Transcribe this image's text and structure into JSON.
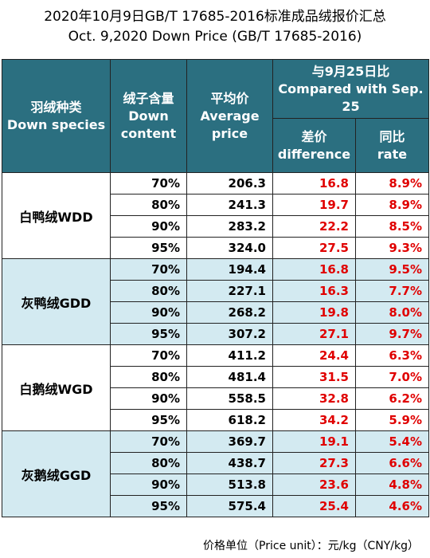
{
  "title_cn": "2020年10月9日GB/T 17685-2016标准成品绒报价汇总",
  "title_en": "Oct. 9,2020 Down Price (GB/T 17685-2016)",
  "headers": {
    "species": [
      "羽绒种类",
      "Down species"
    ],
    "content": [
      "绒子含量",
      "Down",
      "content"
    ],
    "avg": [
      "平均价",
      "Average",
      "price"
    ],
    "compare": [
      "与9月25日比",
      "Compared with Sep.",
      "25"
    ],
    "diff": [
      "差价",
      "difference"
    ],
    "rate": [
      "同比",
      "rate"
    ]
  },
  "colors": {
    "header_bg": "#2b6f80",
    "shade_bg": "#d3eaf1",
    "change": "#e00000"
  },
  "groups": [
    {
      "species": "白鸭绒WDD",
      "shaded": false,
      "rows": [
        {
          "content": "70%",
          "avg": "206.3",
          "diff": "16.8",
          "rate": "8.9%"
        },
        {
          "content": "80%",
          "avg": "241.3",
          "diff": "19.7",
          "rate": "8.9%"
        },
        {
          "content": "90%",
          "avg": "283.2",
          "diff": "22.2",
          "rate": "8.5%"
        },
        {
          "content": "95%",
          "avg": "324.0",
          "diff": "27.5",
          "rate": "9.3%"
        }
      ]
    },
    {
      "species": "灰鸭绒GDD",
      "shaded": true,
      "rows": [
        {
          "content": "70%",
          "avg": "194.4",
          "diff": "16.8",
          "rate": "9.5%"
        },
        {
          "content": "80%",
          "avg": "227.1",
          "diff": "16.3",
          "rate": "7.7%"
        },
        {
          "content": "90%",
          "avg": "268.2",
          "diff": "19.8",
          "rate": "8.0%"
        },
        {
          "content": "95%",
          "avg": "307.2",
          "diff": "27.1",
          "rate": "9.7%"
        }
      ]
    },
    {
      "species": "白鹅绒WGD",
      "shaded": false,
      "rows": [
        {
          "content": "70%",
          "avg": "411.2",
          "diff": "24.4",
          "rate": "6.3%"
        },
        {
          "content": "80%",
          "avg": "481.4",
          "diff": "31.5",
          "rate": "7.0%"
        },
        {
          "content": "90%",
          "avg": "558.5",
          "diff": "32.8",
          "rate": "6.2%"
        },
        {
          "content": "95%",
          "avg": "618.2",
          "diff": "34.2",
          "rate": "5.9%"
        }
      ]
    },
    {
      "species": "灰鹅绒GGD",
      "shaded": true,
      "rows": [
        {
          "content": "70%",
          "avg": "369.7",
          "diff": "19.1",
          "rate": "5.4%"
        },
        {
          "content": "80%",
          "avg": "438.7",
          "diff": "27.3",
          "rate": "6.6%"
        },
        {
          "content": "90%",
          "avg": "513.8",
          "diff": "23.6",
          "rate": "4.8%"
        },
        {
          "content": "95%",
          "avg": "575.4",
          "diff": "25.4",
          "rate": "4.6%"
        }
      ]
    }
  ],
  "footer": "价格单位（Price unit）：元/kg（CNY/kg）"
}
